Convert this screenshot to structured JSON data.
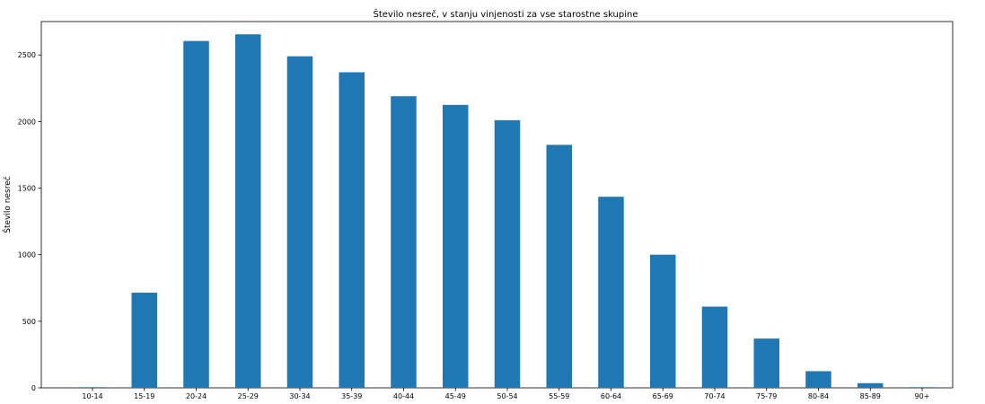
{
  "chart_data": {
    "type": "bar",
    "title": "Število nesreč, v stanju vinjenosti za vse starostne skupine",
    "xlabel": "",
    "ylabel": "Število nesreč",
    "categories": [
      "10-14",
      "15-19",
      "20-24",
      "25-29",
      "30-34",
      "35-39",
      "40-44",
      "45-49",
      "50-54",
      "55-59",
      "60-64",
      "65-69",
      "70-74",
      "75-79",
      "80-84",
      "85-89",
      "90+"
    ],
    "values": [
      5,
      715,
      2605,
      2655,
      2490,
      2370,
      2190,
      2125,
      2010,
      1825,
      1435,
      1000,
      610,
      370,
      125,
      35,
      5
    ],
    "ylim": [
      0,
      2751
    ],
    "yticks": [
      0,
      500,
      1000,
      1500,
      2000,
      2500
    ],
    "grid": false,
    "color": "#1f77b4"
  }
}
